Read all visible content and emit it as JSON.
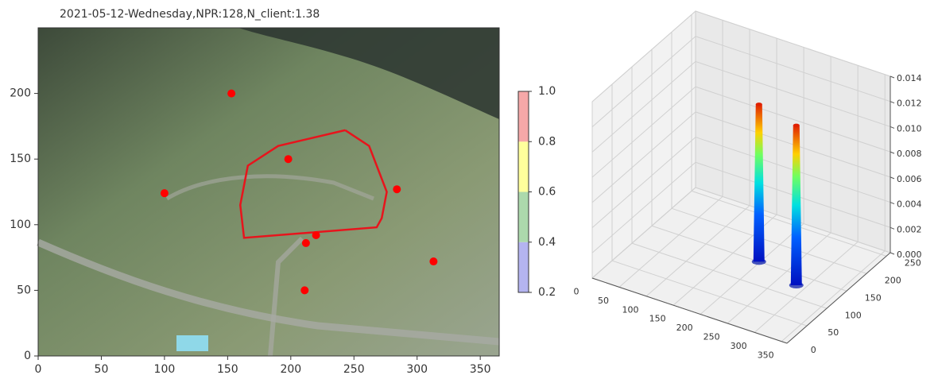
{
  "chart_data": [
    {
      "type": "scatter",
      "title": "2021-05-12-Wednesday,NPR:128,N_client:1.38",
      "x": [
        153,
        198,
        100,
        284,
        220,
        212,
        313,
        211
      ],
      "y": [
        200,
        150,
        124,
        127,
        92,
        86,
        72,
        50
      ],
      "color": "#ff0000",
      "boundary": {
        "color": "#e8141c",
        "x": [
          243,
          262,
          276,
          272,
          268,
          163,
          160,
          166,
          190,
          243
        ],
        "y": [
          172,
          160,
          125,
          105,
          98,
          90,
          115,
          145,
          160,
          172
        ]
      },
      "xlim": [
        0,
        365
      ],
      "ylim": [
        0,
        250
      ],
      "xticks": [
        0,
        50,
        100,
        150,
        200,
        250,
        300,
        350
      ],
      "yticks": [
        0,
        50,
        100,
        150,
        200
      ],
      "colorbar": {
        "lim": [
          0.2,
          1.0
        ],
        "ticks": [
          0.2,
          0.4,
          0.6,
          0.8,
          {
            "value": 1,
            "label": "1.0"
          }
        ],
        "colors": [
          "#b4b4f0",
          "#acd9ac",
          "#ffff9c",
          "#f5a8a8"
        ]
      }
    },
    {
      "type": "surface3d",
      "peaks": {
        "x": [
          198,
          284
        ],
        "y": [
          150,
          127
        ],
        "z": [
          0.0125,
          0.0127
        ]
      },
      "xlim": [
        0,
        360
      ],
      "ylim": [
        0,
        260
      ],
      "zlim": [
        0,
        0.014
      ],
      "xticks": [
        0,
        50,
        100,
        150,
        200,
        250,
        300,
        350
      ],
      "yticks": [
        0,
        50,
        100,
        150,
        200,
        250
      ],
      "zticks": [
        {
          "value": 0,
          "label": "0.000"
        },
        {
          "value": 0.002,
          "label": "0.002"
        },
        {
          "value": 0.004,
          "label": "0.004"
        },
        {
          "value": 0.006,
          "label": "0.006"
        },
        {
          "value": 0.008,
          "label": "0.008"
        },
        {
          "value": 0.01,
          "label": "0.010"
        },
        {
          "value": 0.012,
          "label": "0.012"
        },
        {
          "value": 0.014,
          "label": "0.014"
        }
      ]
    }
  ]
}
